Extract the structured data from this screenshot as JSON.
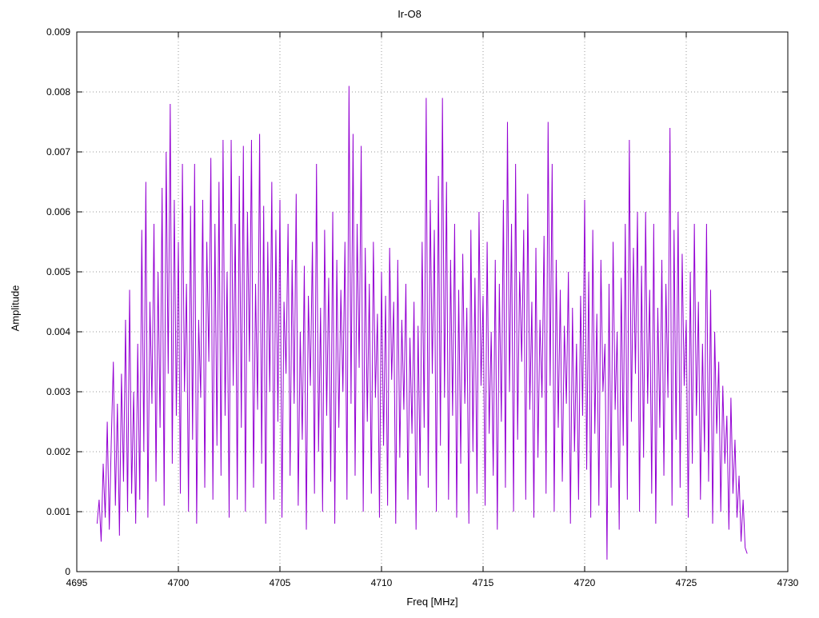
{
  "title": "Ir-O8",
  "chart_data": {
    "type": "line",
    "title": "Ir-O8",
    "xlabel": "Freq [MHz]",
    "ylabel": "Amplitude",
    "xlim": [
      4695,
      4730
    ],
    "ylim": [
      0,
      0.009
    ],
    "x_ticks": [
      4695,
      4700,
      4705,
      4710,
      4715,
      4720,
      4725,
      4730
    ],
    "y_ticks": [
      0,
      0.001,
      0.002,
      0.003,
      0.004,
      0.005,
      0.006,
      0.007,
      0.008,
      0.009
    ],
    "y_tick_labels": [
      "0",
      "0.001",
      "0.002",
      "0.003",
      "0.004",
      "0.005",
      "0.006",
      "0.007",
      "0.008",
      "0.009"
    ],
    "grid": true,
    "legend": "none",
    "line_color": "#9400d3",
    "x_start": 4696.0,
    "x_step": 0.1,
    "amp_scale": 0.0001,
    "values": [
      8,
      12,
      5,
      18,
      9,
      25,
      7,
      22,
      35,
      11,
      28,
      6,
      33,
      15,
      42,
      10,
      47,
      13,
      30,
      8,
      38,
      12,
      57,
      20,
      65,
      9,
      45,
      28,
      58,
      15,
      50,
      24,
      64,
      11,
      70,
      33,
      78,
      18,
      62,
      26,
      55,
      13,
      68,
      30,
      48,
      10,
      61,
      22,
      68,
      8,
      42,
      29,
      62,
      14,
      55,
      35,
      69,
      12,
      58,
      21,
      65,
      16,
      72,
      26,
      50,
      9,
      72,
      31,
      58,
      12,
      66,
      24,
      71,
      10,
      60,
      35,
      72,
      14,
      48,
      27,
      73,
      18,
      61,
      8,
      55,
      30,
      65,
      12,
      57,
      25,
      62,
      9,
      45,
      33,
      58,
      16,
      52,
      28,
      63,
      11,
      40,
      22,
      51,
      7,
      46,
      31,
      55,
      13,
      68,
      20,
      44,
      10,
      57,
      26,
      49,
      15,
      60,
      8,
      52,
      24,
      47,
      30,
      55,
      12,
      81,
      28,
      73,
      16,
      58,
      34,
      71,
      10,
      54,
      25,
      48,
      13,
      55,
      29,
      43,
      9,
      50,
      21,
      46,
      11,
      54,
      32,
      45,
      8,
      52,
      19,
      42,
      27,
      48,
      12,
      39,
      23,
      45,
      7,
      41,
      16,
      55,
      24,
      79,
      14,
      62,
      33,
      57,
      10,
      66,
      21,
      79,
      29,
      65,
      12,
      52,
      26,
      58,
      9,
      47,
      18,
      53,
      28,
      44,
      8,
      57,
      20,
      49,
      13,
      60,
      31,
      46,
      11,
      55,
      23,
      40,
      16,
      52,
      7,
      48,
      25,
      62,
      14,
      75,
      30,
      58,
      10,
      68,
      22,
      50,
      35,
      57,
      12,
      63,
      27,
      45,
      9,
      54,
      19,
      42,
      29,
      56,
      13,
      75,
      31,
      68,
      10,
      52,
      24,
      47,
      15,
      41,
      28,
      50,
      8,
      44,
      20,
      38,
      12,
      46,
      26,
      62,
      17,
      50,
      9,
      57,
      23,
      43,
      11,
      52,
      30,
      38,
      2,
      48,
      14,
      55,
      27,
      40,
      7,
      49,
      21,
      58,
      12,
      72,
      25,
      54,
      33,
      60,
      10,
      51,
      19,
      60,
      28,
      47,
      13,
      58,
      8,
      44,
      24,
      52,
      16,
      48,
      29,
      74,
      11,
      57,
      22,
      60,
      14,
      53,
      31,
      42,
      9,
      50,
      18,
      58,
      26,
      45,
      12,
      38,
      20,
      58,
      15,
      47,
      8,
      40,
      23,
      35,
      10,
      31,
      18,
      26,
      7,
      29,
      13,
      22,
      9,
      16,
      5,
      12,
      4,
      3
    ]
  }
}
